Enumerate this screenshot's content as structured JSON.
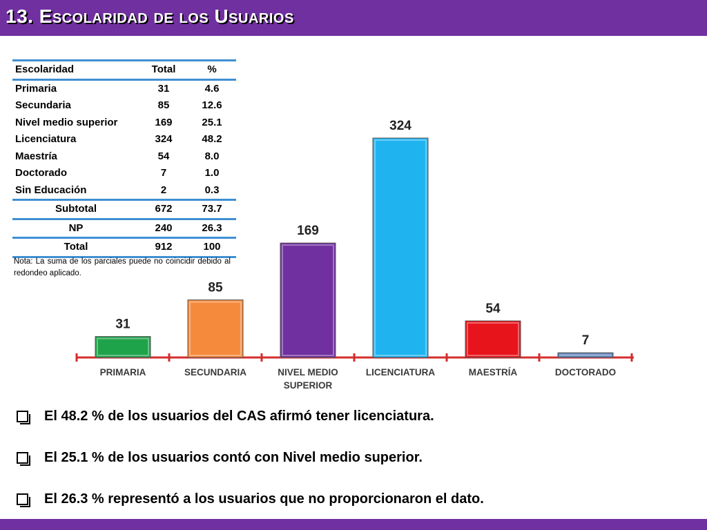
{
  "header": {
    "title": "13. Escolaridad de los Usuarios"
  },
  "table": {
    "columns": [
      "Escolaridad",
      "Total",
      "%"
    ],
    "rows": [
      [
        "Primaria",
        "31",
        "4.6"
      ],
      [
        "Secundaria",
        "85",
        "12.6"
      ],
      [
        "Nivel medio superior",
        "169",
        "25.1"
      ],
      [
        "Licenciatura",
        "324",
        "48.2"
      ],
      [
        "Maestría",
        "54",
        "8.0"
      ],
      [
        "Doctorado",
        "7",
        "1.0"
      ],
      [
        "Sin Educación",
        "2",
        "0.3"
      ]
    ],
    "summary_rows": [
      [
        "Subtotal",
        "672",
        "73.7"
      ],
      [
        "NP",
        "240",
        "26.3"
      ],
      [
        "Total",
        "912",
        "100"
      ]
    ],
    "note": "Nota: La suma de los parciales puede no coincidir debido al redondeo aplicado."
  },
  "chart_data": {
    "type": "bar",
    "categories": [
      "PRIMARIA",
      "SECUNDARIA",
      "NIVEL MEDIO SUPERIOR",
      "LICENCIATURA",
      "MAESTRÍA",
      "DOCTORADO"
    ],
    "values": [
      31,
      85,
      169,
      324,
      54,
      7
    ],
    "colors": [
      "#1fa34a",
      "#f58a3c",
      "#7030a0",
      "#1fb4f0",
      "#e8141c",
      "#5b7fb8"
    ],
    "axis_color": "#d42c2c",
    "title": "",
    "xlabel": "",
    "ylabel": "",
    "ylim": [
      0,
      324
    ],
    "grid": false
  },
  "bullets": [
    "El 48.2 % de los usuarios del CAS afirmó tener licenciatura.",
    "El 25.1 % de los usuarios contó con Nivel medio superior.",
    "El 26.3 % representó a los usuarios que no proporcionaron el dato."
  ]
}
